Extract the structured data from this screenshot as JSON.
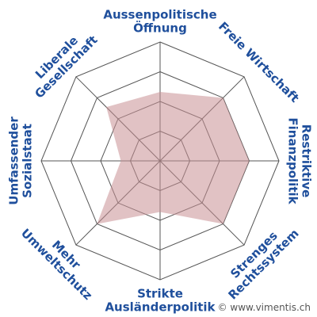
{
  "chart_data": {
    "type": "radar",
    "axes": [
      [
        "Aussenpolitische",
        "Öffnung"
      ],
      [
        "Freie Wirtschaft"
      ],
      [
        "Restriktive",
        "Finanzpolitik"
      ],
      [
        "Strenges",
        "Rechtssystem"
      ],
      [
        "Strikte",
        "Ausländerpolitik"
      ],
      [
        "Mehr",
        "Umweltschutz"
      ],
      [
        "Umfassender",
        "Sozialstaat"
      ],
      [
        "Liberale",
        "Gesellschaft"
      ]
    ],
    "values": [
      58,
      75,
      75,
      75,
      43,
      75,
      33,
      64
    ],
    "range": [
      0,
      100
    ],
    "rings": 4,
    "colors": {
      "grid": "#555555",
      "fill": "#c88f94",
      "label": "#1f4f9c"
    }
  },
  "credit": "© www.vimentis.ch"
}
